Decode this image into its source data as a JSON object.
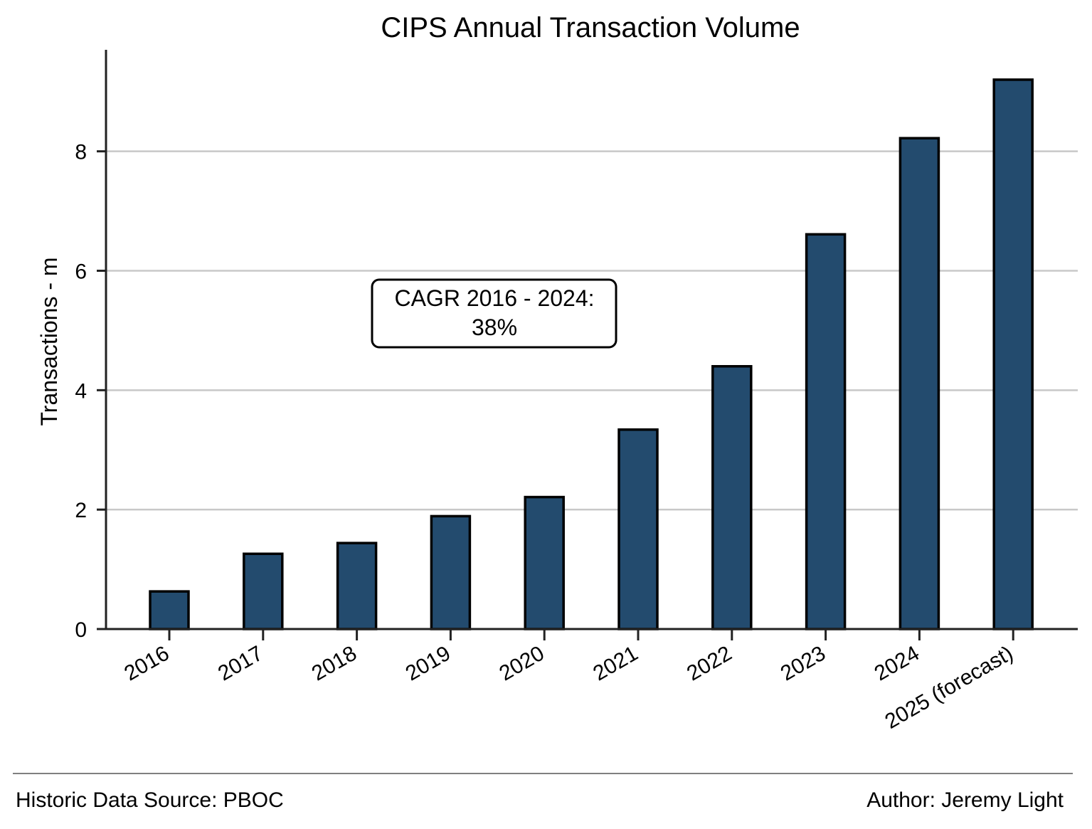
{
  "chart_data": {
    "type": "bar",
    "title": "CIPS Annual Transaction Volume",
    "xlabel": "",
    "ylabel": "Transactions - m",
    "categories": [
      "2016",
      "2017",
      "2018",
      "2019",
      "2020",
      "2021",
      "2022",
      "2023",
      "2024",
      "2025 (forecast)"
    ],
    "values": [
      0.63,
      1.26,
      1.44,
      1.89,
      2.21,
      3.34,
      4.4,
      6.61,
      8.22,
      9.2
    ],
    "ylim": [
      0,
      9.7
    ],
    "yticks": [
      0,
      2,
      4,
      6,
      8
    ],
    "ytick_labels": [
      "0",
      "2",
      "4",
      "6",
      "8"
    ],
    "grid": "horizontal",
    "annotation": {
      "line1": "CAGR 2016 - 2024:",
      "line2": "38%"
    },
    "colors": {
      "bar": "#234b6e",
      "bar_edge": "#000000",
      "grid": "#c8c8c8",
      "axis": "#222222"
    }
  },
  "footer": {
    "source": "Historic Data Source: PBOC",
    "author": "Author: Jeremy Light"
  }
}
